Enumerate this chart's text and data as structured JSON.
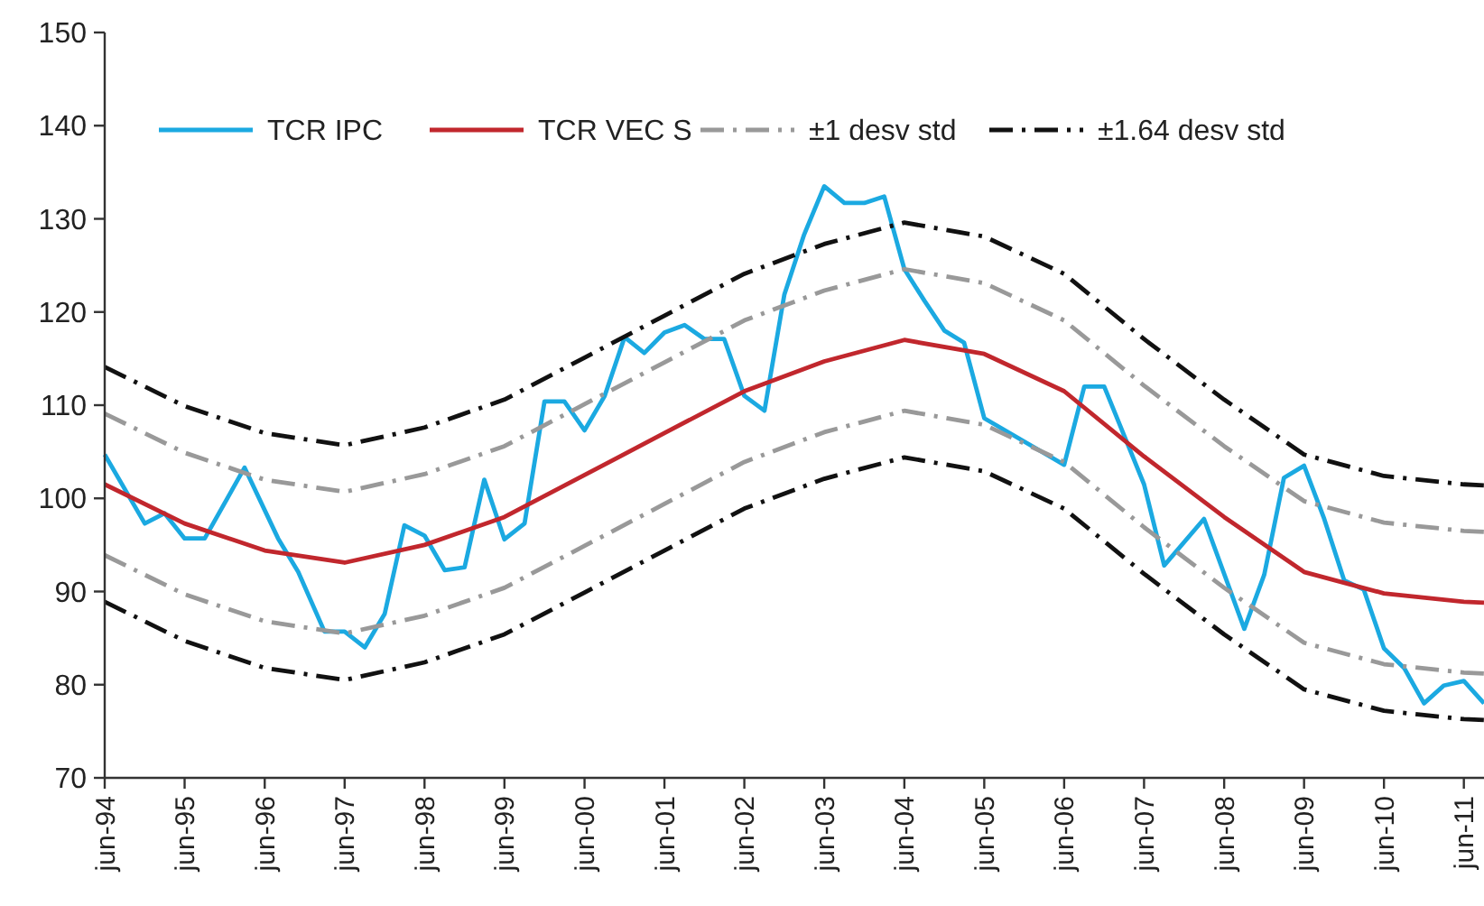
{
  "chart_data": {
    "type": "line",
    "xlim": [
      "1994-06",
      "2011-09"
    ],
    "xticks": [
      {
        "value": "1994-06",
        "label": "jun-94"
      },
      {
        "value": "1995-06",
        "label": "jun-95"
      },
      {
        "value": "1996-06",
        "label": "jun-96"
      },
      {
        "value": "1997-06",
        "label": "jun-97"
      },
      {
        "value": "1998-06",
        "label": "jun-98"
      },
      {
        "value": "1999-06",
        "label": "jun-99"
      },
      {
        "value": "2000-06",
        "label": "jun-00"
      },
      {
        "value": "2001-06",
        "label": "jun-01"
      },
      {
        "value": "2002-06",
        "label": "jun-02"
      },
      {
        "value": "2003-06",
        "label": "jun-03"
      },
      {
        "value": "2004-06",
        "label": "jun-04"
      },
      {
        "value": "2005-06",
        "label": "jun-05"
      },
      {
        "value": "2006-06",
        "label": "jun-06"
      },
      {
        "value": "2007-06",
        "label": "jun-07"
      },
      {
        "value": "2008-06",
        "label": "jun-08"
      },
      {
        "value": "2009-06",
        "label": "jun-09"
      },
      {
        "value": "2010-06",
        "label": "jun-10"
      },
      {
        "value": "2011-06",
        "label": "jun-11"
      }
    ],
    "ylim": [
      70,
      150
    ],
    "yticks": [
      70,
      80,
      90,
      100,
      110,
      120,
      130,
      140,
      150
    ],
    "grid": false,
    "legend": "top",
    "marker": "none",
    "series": [
      {
        "name": "TCR IPC",
        "color": "#1ba9e1",
        "line_style": "solid",
        "x": [
          "1994-06",
          "1994-12",
          "1995-03",
          "1995-06",
          "1995-09",
          "1996-03",
          "1996-08",
          "1996-11",
          "1997-03",
          "1997-06",
          "1997-09",
          "1997-12",
          "1998-03",
          "1998-06",
          "1998-09",
          "1998-12",
          "1999-03",
          "1999-06",
          "1999-09",
          "1999-12",
          "2000-03",
          "2000-06",
          "2000-09",
          "2000-12",
          "2001-03",
          "2001-06",
          "2001-09",
          "2001-12",
          "2002-03",
          "2002-06",
          "2002-09",
          "2002-12",
          "2003-03",
          "2003-06",
          "2003-09",
          "2003-12",
          "2004-03",
          "2004-06",
          "2004-09",
          "2004-12",
          "2005-03",
          "2005-06",
          "2006-06",
          "2006-09",
          "2006-12",
          "2007-06",
          "2007-09",
          "2008-03",
          "2008-09",
          "2008-12",
          "2009-03",
          "2009-06",
          "2009-09",
          "2009-12",
          "2010-03",
          "2010-06",
          "2010-09",
          "2010-12",
          "2011-03",
          "2011-06",
          "2011-09"
        ],
        "values": [
          104.7,
          97.3,
          98.4,
          95.7,
          95.7,
          103.3,
          95.7,
          92.1,
          85.7,
          85.7,
          84.0,
          87.6,
          97.1,
          96.0,
          92.3,
          92.6,
          102.0,
          95.6,
          97.3,
          110.4,
          110.4,
          107.3,
          111.0,
          117.3,
          115.6,
          117.8,
          118.6,
          117.1,
          117.1,
          111.0,
          109.4,
          121.9,
          128.3,
          133.5,
          131.7,
          131.7,
          132.4,
          124.6,
          121.2,
          118.0,
          116.7,
          108.6,
          103.6,
          112.0,
          112.0,
          101.5,
          92.8,
          97.8,
          86.0,
          91.8,
          102.2,
          103.5,
          97.8,
          91.2,
          90.2,
          83.9,
          81.8,
          78.0,
          79.9,
          80.4,
          78.0
        ]
      },
      {
        "name": "TCR VEC S",
        "color": "#c1272d",
        "line_style": "solid",
        "values": [
          101.5,
          97.3,
          94.4,
          93.1,
          95.0,
          98.0,
          102.5,
          107.0,
          111.5,
          114.7,
          117.0,
          115.5,
          111.5,
          104.5,
          98.0,
          92.1,
          89.8,
          88.9,
          88.8
        ]
      },
      {
        "name": "±1 desv std",
        "color": "#999999",
        "line_style": "dashed",
        "values": [
          109.1,
          104.9,
          102.0,
          100.7,
          102.6,
          105.6,
          110.1,
          114.6,
          119.1,
          122.3,
          124.6,
          123.1,
          119.1,
          112.1,
          105.6,
          99.7,
          97.4,
          96.5,
          96.4
        ]
      },
      {
        "color": "#999999",
        "line_style": "dashed",
        "values": [
          93.9,
          89.7,
          86.8,
          85.5,
          87.4,
          90.4,
          94.9,
          99.4,
          103.9,
          107.1,
          109.4,
          107.9,
          103.9,
          96.9,
          90.4,
          84.5,
          82.2,
          81.3,
          81.2
        ]
      },
      {
        "name": "±1.64 desv std",
        "color": "#111111",
        "line_style": "dashed",
        "values": [
          114.1,
          109.9,
          107.0,
          105.7,
          107.6,
          110.6,
          115.1,
          119.6,
          124.1,
          127.3,
          129.6,
          128.1,
          124.1,
          117.1,
          110.6,
          104.7,
          102.4,
          101.5,
          101.4
        ]
      },
      {
        "color": "#111111",
        "line_style": "dashed",
        "values": [
          88.9,
          84.7,
          81.8,
          80.5,
          82.4,
          85.4,
          89.9,
          94.4,
          98.9,
          102.1,
          104.4,
          102.9,
          98.9,
          91.9,
          85.4,
          79.5,
          77.2,
          76.3,
          76.2
        ]
      }
    ],
    "x": [
      "1994-06",
      "1995-06",
      "1996-06",
      "1997-06",
      "1998-06",
      "1999-06",
      "2000-06",
      "2001-06",
      "2002-06",
      "2003-06",
      "2004-06",
      "2005-06",
      "2006-06",
      "2007-06",
      "2008-06",
      "2009-06",
      "2010-06",
      "2011-06",
      "2011-09"
    ]
  }
}
